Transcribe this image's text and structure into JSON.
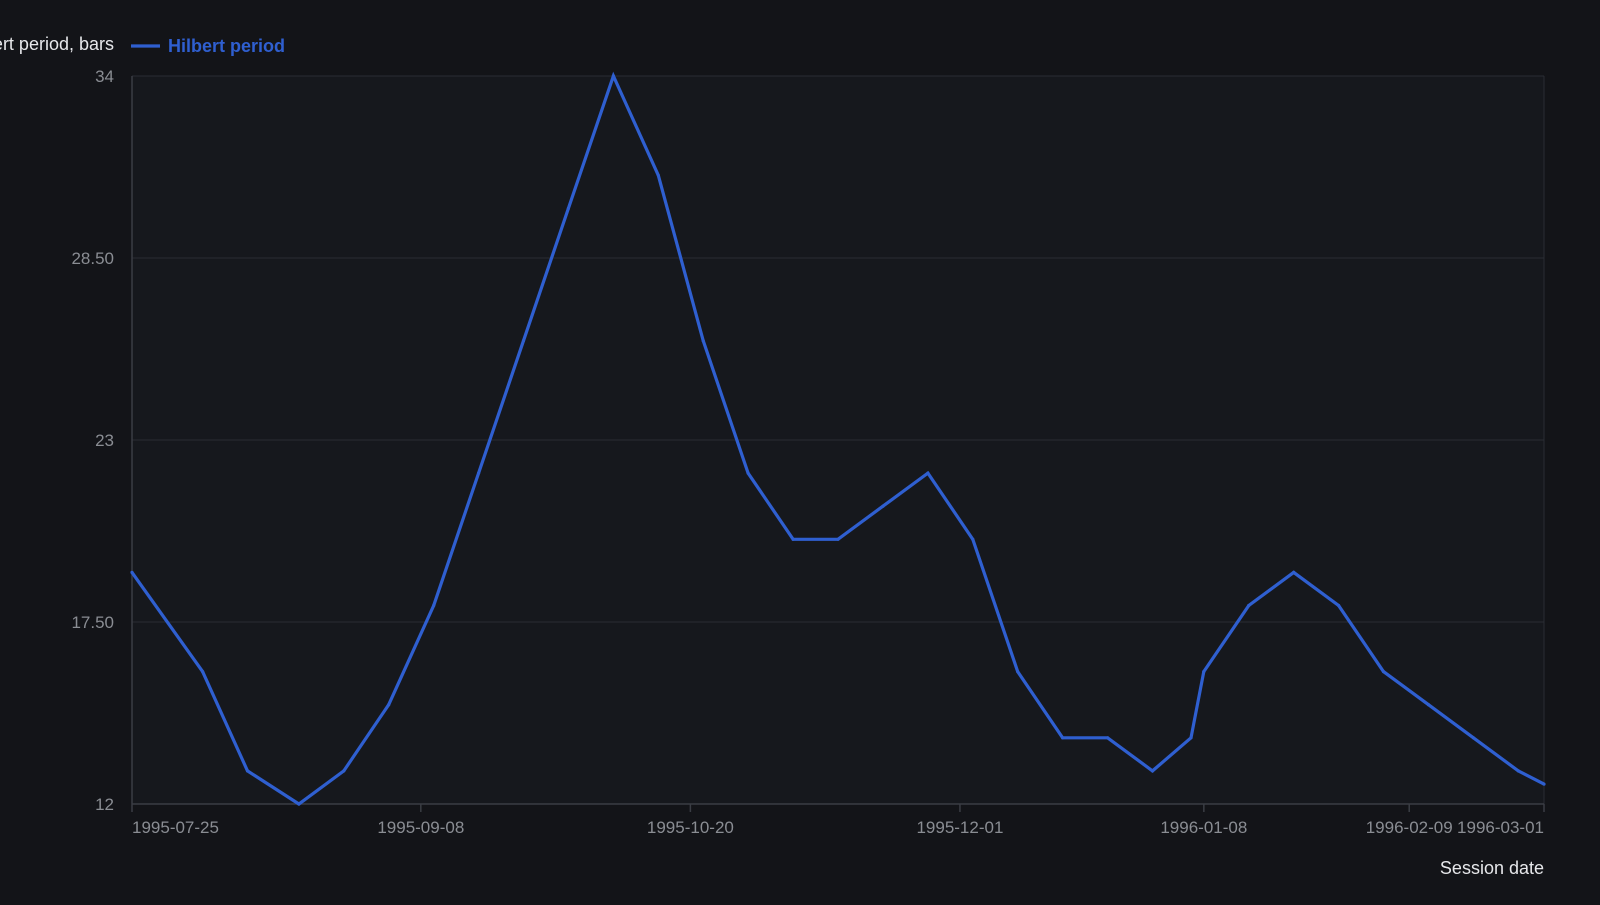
{
  "colors": {
    "background": "#131418",
    "plot_background": "#16181d",
    "grid": "#2a2d33",
    "axis": "#3a3d44",
    "tick_text": "#8a8d93",
    "label_text": "#e6e7ea",
    "series": "#2f5fd0"
  },
  "chart_data": {
    "type": "line",
    "ylabel": "Hilbert period, bars",
    "xlabel": "Session date",
    "ylim": [
      12,
      34
    ],
    "yticks": [
      "12",
      "17.50",
      "23",
      "28.50",
      "34"
    ],
    "x_axis": "date",
    "xlim": [
      "1995-07-25",
      "1996-03-01"
    ],
    "xticks": [
      "1995-07-25",
      "1995-09-08",
      "1995-10-20",
      "1995-12-01",
      "1996-01-08",
      "1996-02-09",
      "1996-03-01"
    ],
    "grid": true,
    "legend_position": "top-left",
    "series": [
      {
        "name": "Hilbert period",
        "points": [
          {
            "x": "1995-07-25",
            "y": 19
          },
          {
            "x": "1995-08-05",
            "y": 16
          },
          {
            "x": "1995-08-12",
            "y": 13
          },
          {
            "x": "1995-08-20",
            "y": 12
          },
          {
            "x": "1995-08-27",
            "y": 13
          },
          {
            "x": "1995-09-03",
            "y": 15
          },
          {
            "x": "1995-09-10",
            "y": 18
          },
          {
            "x": "1995-09-17",
            "y": 22
          },
          {
            "x": "1995-09-24",
            "y": 26
          },
          {
            "x": "1995-10-01",
            "y": 30
          },
          {
            "x": "1995-10-08",
            "y": 34
          },
          {
            "x": "1995-10-15",
            "y": 31
          },
          {
            "x": "1995-10-22",
            "y": 26
          },
          {
            "x": "1995-10-29",
            "y": 22
          },
          {
            "x": "1995-11-05",
            "y": 20
          },
          {
            "x": "1995-11-12",
            "y": 20
          },
          {
            "x": "1995-11-19",
            "y": 21
          },
          {
            "x": "1995-11-26",
            "y": 22
          },
          {
            "x": "1995-12-03",
            "y": 20
          },
          {
            "x": "1995-12-10",
            "y": 16
          },
          {
            "x": "1995-12-17",
            "y": 14
          },
          {
            "x": "1995-12-24",
            "y": 14
          },
          {
            "x": "1995-12-31",
            "y": 13
          },
          {
            "x": "1996-01-06",
            "y": 14
          },
          {
            "x": "1996-01-08",
            "y": 16
          },
          {
            "x": "1996-01-15",
            "y": 18
          },
          {
            "x": "1996-01-22",
            "y": 19
          },
          {
            "x": "1996-01-29",
            "y": 18
          },
          {
            "x": "1996-02-05",
            "y": 16
          },
          {
            "x": "1996-02-12",
            "y": 15
          },
          {
            "x": "1996-02-19",
            "y": 14
          },
          {
            "x": "1996-02-26",
            "y": 13
          },
          {
            "x": "1996-03-01",
            "y": 12.6
          }
        ]
      }
    ]
  }
}
